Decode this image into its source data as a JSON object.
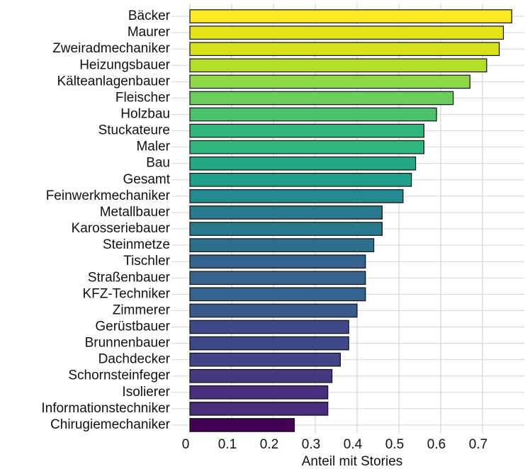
{
  "chart_data": {
    "type": "barh",
    "x_label": "Anteil mit Stories",
    "categories": [
      "Bäcker",
      "Maurer",
      "Zweiradmechaniker",
      "Heizungsbauer",
      "Kälteanlagenbauer",
      "Fleischer",
      "Holzbau",
      "Stuckateure",
      "Maler",
      "Bau",
      "Gesamt",
      "Feinwerkmechaniker",
      "Metallbauer",
      "Karosseriebauer",
      "Steinmetze",
      "Tischler",
      "Straßenbauer",
      "KFZ-Techniker",
      "Zimmerer",
      "Gerüstbauer",
      "Brunnenbauer",
      "Dachdecker",
      "Schornsteinfeger",
      "Isolierer",
      "Informationstechniker",
      "Chirugiemechaniker"
    ],
    "values": [
      0.77,
      0.75,
      0.74,
      0.71,
      0.67,
      0.63,
      0.59,
      0.56,
      0.56,
      0.54,
      0.53,
      0.51,
      0.46,
      0.46,
      0.44,
      0.42,
      0.42,
      0.42,
      0.4,
      0.38,
      0.38,
      0.36,
      0.34,
      0.33,
      0.33,
      0.25
    ],
    "colors": [
      "#fde725",
      "#e5e419",
      "#d8e219",
      "#b5de2b",
      "#8fd744",
      "#6ccd5a",
      "#4ac16d",
      "#2fb47c",
      "#2fb47c",
      "#22a884",
      "#1f9e89",
      "#23898e",
      "#2a788e",
      "#2a788e",
      "#2d708e",
      "#33638d",
      "#33638d",
      "#33638d",
      "#38598c",
      "#3e4989",
      "#3e4989",
      "#414487",
      "#453781",
      "#472d7b",
      "#472d7b",
      "#440154"
    ],
    "xlim": [
      0,
      0.8
    ],
    "xticks": [
      0,
      0.1,
      0.2,
      0.3,
      0.4,
      0.5,
      0.6,
      0.7
    ],
    "grid": true
  }
}
